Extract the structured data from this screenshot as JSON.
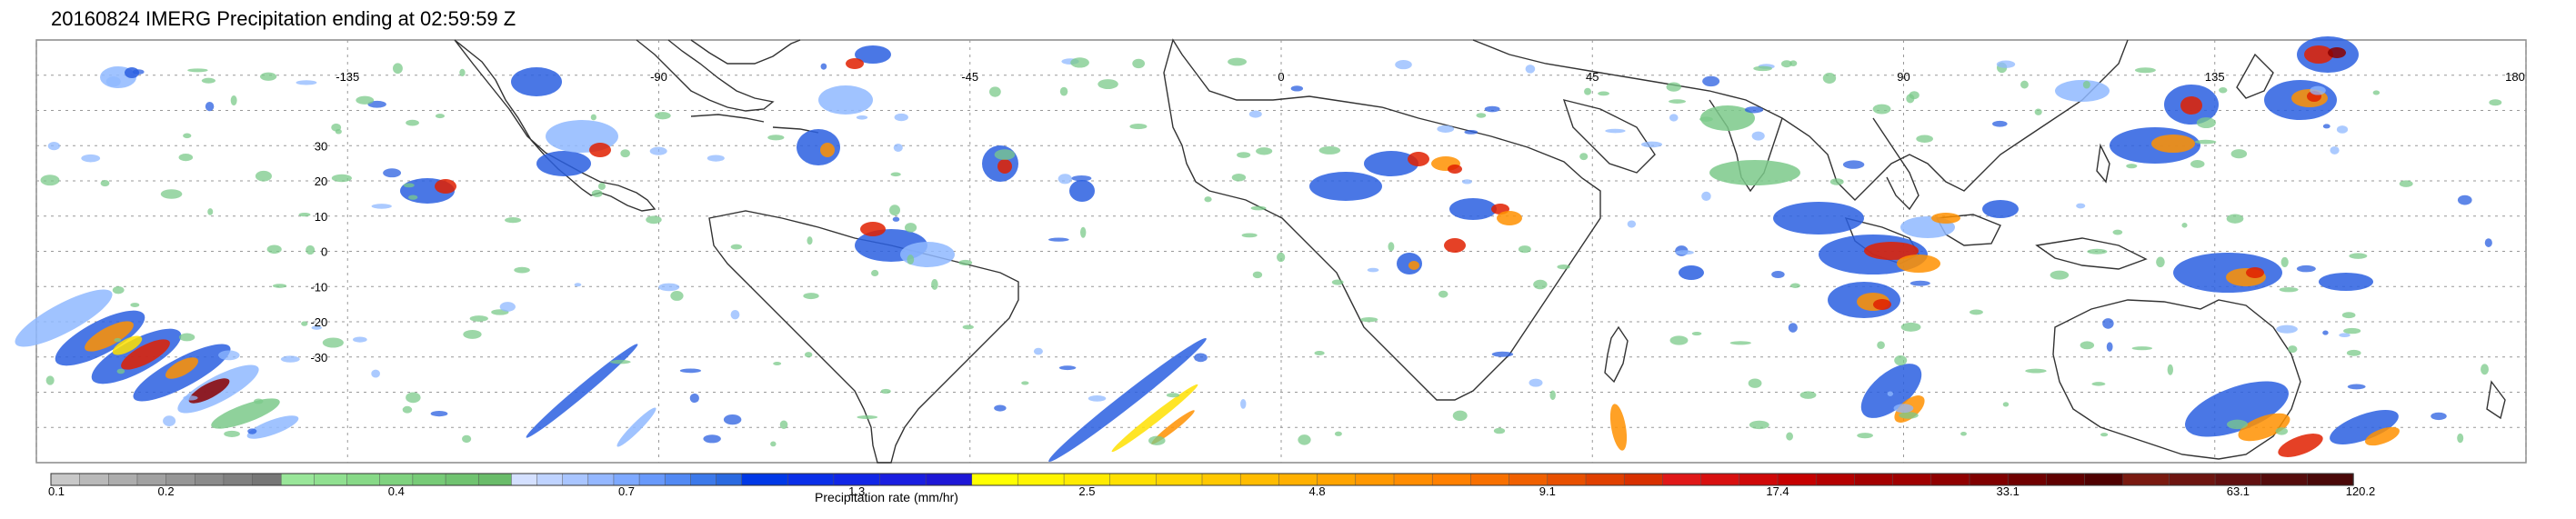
{
  "title": "20160824 IMERG Precipitation ending at 02:59:59 Z",
  "map": {
    "lon_range": [
      -180,
      180
    ],
    "lat_range": [
      -60,
      60
    ],
    "lon_labels": [
      "-135",
      "-90",
      "-45",
      "0",
      "45",
      "90",
      "135",
      "180"
    ],
    "lat_labels": [
      "30",
      "20",
      "10",
      "0",
      "-10",
      "-20",
      "-30"
    ],
    "grid": true
  },
  "colorbar": {
    "title": "Precipitation rate (mm/hr)",
    "tick_labels": [
      "0.1",
      "0.2",
      "0.4",
      "0.7",
      "1.3",
      "2.5",
      "4.8",
      "9.1",
      "17.4",
      "33.1",
      "63.1",
      "120.2"
    ],
    "groups": [
      {
        "colors": [
          "#c8c8c8",
          "#b9b9b9",
          "#adadad",
          "#a1a1a1",
          "#969696",
          "#8b8b8b",
          "#808080",
          "#767676"
        ]
      },
      {
        "colors": [
          "#99e699",
          "#90e090",
          "#87d987",
          "#7fd27f",
          "#77cb77",
          "#70c370",
          "#69bc69"
        ]
      },
      {
        "colors": [
          "#d4e0ff",
          "#bfd3ff",
          "#a9c5ff",
          "#94b7ff",
          "#7ea9ff",
          "#6899fb",
          "#5289f3",
          "#3c79ea",
          "#2a69e0"
        ]
      },
      {
        "colors": [
          "#0038e6",
          "#0a2fe8",
          "#1126e6",
          "#1a1ee0",
          "#1e17d6"
        ]
      },
      {
        "colors": [
          "#ffff00",
          "#fff500",
          "#ffeb00",
          "#ffe000",
          "#ffd500"
        ]
      },
      {
        "colors": [
          "#ffc800",
          "#ffbc00",
          "#ffb000",
          "#ffa400",
          "#ff9800",
          "#ff8c00"
        ]
      },
      {
        "colors": [
          "#ff8000",
          "#f87000",
          "#f06000",
          "#e85000",
          "#e04000",
          "#d83000"
        ]
      },
      {
        "colors": [
          "#e01818",
          "#d81010",
          "#cf0808",
          "#c60000",
          "#b50000",
          "#a40000"
        ]
      },
      {
        "colors": [
          "#a00000",
          "#900000",
          "#800000",
          "#700000",
          "#600000",
          "#500000"
        ]
      },
      {
        "colors": [
          "#7a1a10",
          "#6e1510",
          "#621010",
          "#560c0c",
          "#4a0808"
        ]
      }
    ]
  }
}
